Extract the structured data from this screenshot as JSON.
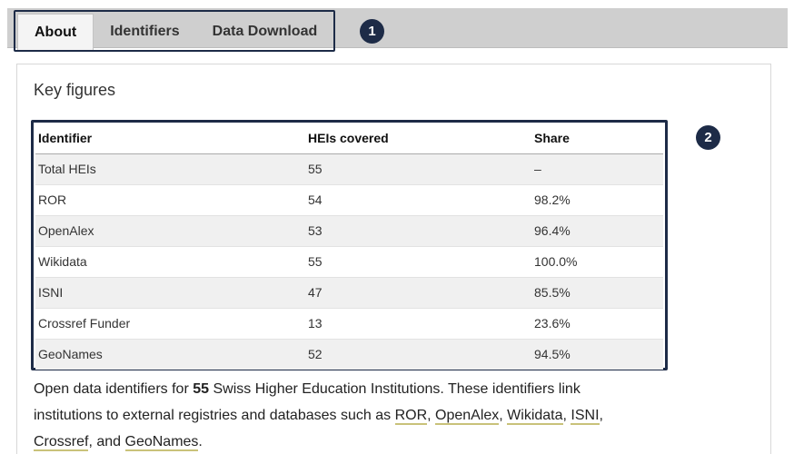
{
  "tabs": [
    {
      "label": "About",
      "active": true
    },
    {
      "label": "Identifiers",
      "active": false
    },
    {
      "label": "Data Download",
      "active": false
    }
  ],
  "badges": [
    "1",
    "2"
  ],
  "key_figures": {
    "title": "Key figures",
    "headers": [
      "Identifier",
      "HEIs covered",
      "Share"
    ],
    "rows": [
      [
        "Total HEIs",
        "55",
        "–"
      ],
      [
        "ROR",
        "54",
        "98.2%"
      ],
      [
        "OpenAlex",
        "53",
        "96.4%"
      ],
      [
        "Wikidata",
        "55",
        "100.0%"
      ],
      [
        "ISNI",
        "47",
        "85.5%"
      ],
      [
        "Crossref Funder",
        "13",
        "23.6%"
      ],
      [
        "GeoNames",
        "52",
        "94.5%"
      ]
    ]
  },
  "description": {
    "prefix": "Open data identifiers for",
    "count": "55",
    "middle": "Swiss Higher Education Institutions. These identifiers link institutions to external registries and databases such as",
    "links": [
      "ROR",
      "OpenAlex",
      "Wikidata",
      "ISNI",
      "Crossref",
      "GeoNames"
    ],
    "and_word": "and",
    "suffix": "."
  },
  "colors": {
    "accent": "#1d2b47",
    "link_underline": "#c9c27a"
  }
}
